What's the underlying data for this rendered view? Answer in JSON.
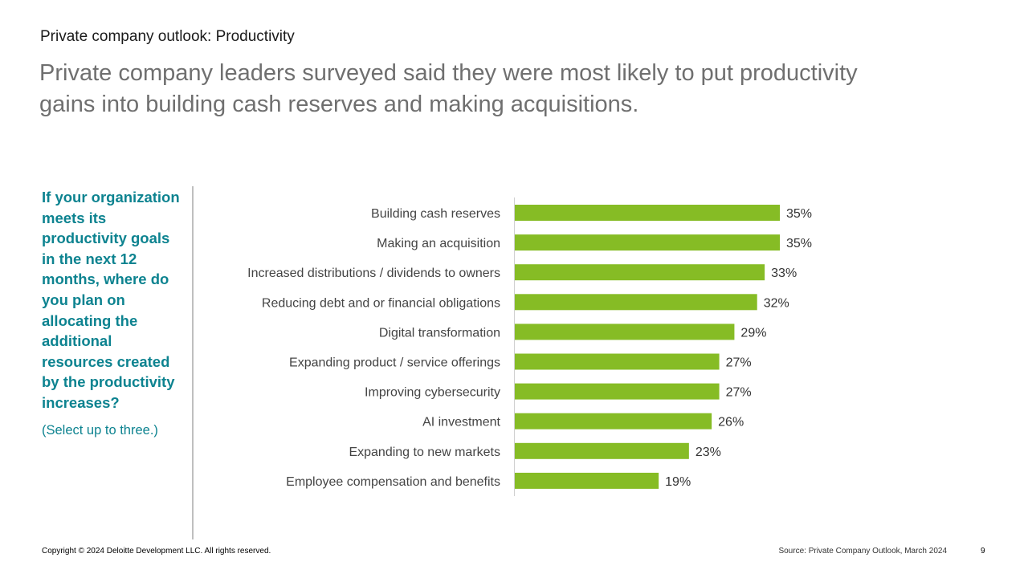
{
  "header": {
    "section_label": "Private company outlook: Productivity",
    "headline": "Private company leaders surveyed said they were most likely to put productivity gains into building cash reserves and making acquisitions."
  },
  "sidebar": {
    "question": "If your organization meets its productivity goals in the next 12 months, where do you plan on allocating the additional resources created by the productivity increases?",
    "instruction": "(Select up to three.)"
  },
  "chart_data": {
    "type": "bar",
    "orientation": "horizontal",
    "categories": [
      "Building cash reserves",
      "Making an acquisition",
      "Increased distributions / dividends to owners",
      "Reducing debt and or financial obligations",
      "Digital transformation",
      "Expanding product / service offerings",
      "Improving cybersecurity",
      "AI investment",
      "Expanding to new markets",
      "Employee compensation and benefits"
    ],
    "values": [
      35,
      35,
      33,
      32,
      29,
      27,
      27,
      26,
      23,
      19
    ],
    "value_labels": [
      "35%",
      "35%",
      "33%",
      "32%",
      "29%",
      "27%",
      "27%",
      "26%",
      "23%",
      "19%"
    ],
    "unit": "%",
    "xlim": [
      0,
      35
    ],
    "grid": false,
    "legend": "none",
    "bar_color": "#86bc25"
  },
  "footer": {
    "copyright": "Copyright © 2024 Deloitte Development LLC. All rights reserved.",
    "source": "Source: Private Company Outlook, March 2024",
    "page_number": "9"
  }
}
